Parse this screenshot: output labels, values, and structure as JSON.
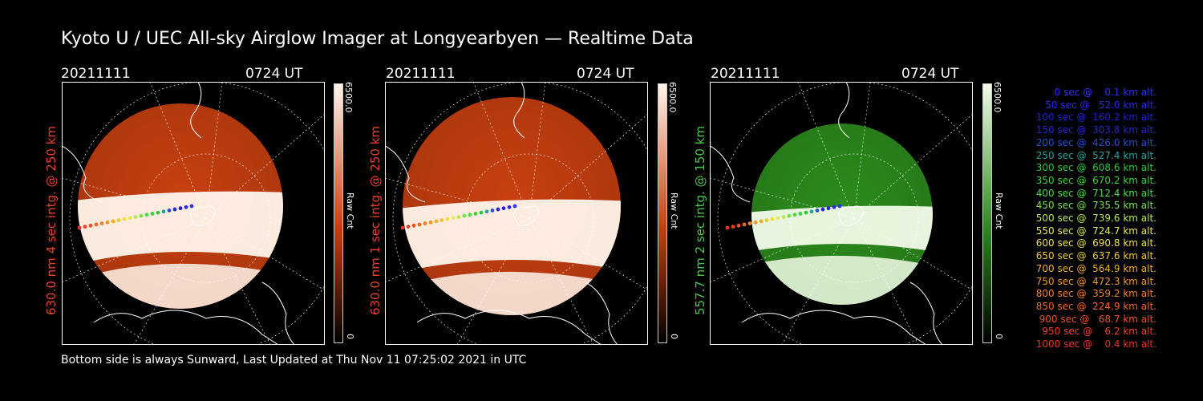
{
  "title": "Kyoto U / UEC All-sky Airglow Imager at Longyearbyen — Realtime Data",
  "footer": "Bottom side is always Sunward, Last Updated at Thu Nov 11 07:25:02 2021 in UTC",
  "panels": [
    {
      "date": "20211111",
      "time": "0724 UT",
      "label": "630.0 nm 4 sec intg. @ 250 km",
      "label_color": "#e8402a",
      "cb_max": "6500.0",
      "cb_min": "0",
      "cb_unit": "Raw Cnt",
      "color_dark": "#000000",
      "color_mid": "#c84010",
      "color_light": "#fff4ea"
    },
    {
      "date": "20211111",
      "time": "0724 UT",
      "label": "630.0 nm 1 sec intg. @ 250 km",
      "label_color": "#e8402a",
      "cb_max": "6500.0",
      "cb_min": "0",
      "cb_unit": "Raw Cnt",
      "color_dark": "#000000",
      "color_mid": "#c84010",
      "color_light": "#fff4ea"
    },
    {
      "date": "20211111",
      "time": "0724 UT",
      "label": "557.7 nm 2 sec intg. @ 150 km",
      "label_color": "#4ac84a",
      "cb_max": "6500.0",
      "cb_min": "0",
      "cb_unit": "Raw Cnt",
      "color_dark": "#000000",
      "color_mid": "#2c8c1c",
      "color_light": "#f2fbe8"
    }
  ],
  "legend": [
    {
      "text": "   0 sec @    0.1 km alt.",
      "color": "#3030ff"
    },
    {
      "text": "  50 sec @   52.0 km alt.",
      "color": "#2828e8"
    },
    {
      "text": " 100 sec @  160.2 km alt.",
      "color": "#2020d8"
    },
    {
      "text": " 150 sec @  303.8 km alt.",
      "color": "#2828c8"
    },
    {
      "text": " 200 sec @  426.0 km alt.",
      "color": "#2850c8"
    },
    {
      "text": " 250 sec @  527.4 km alt.",
      "color": "#28a0a0"
    },
    {
      "text": " 300 sec @  608.6 km alt.",
      "color": "#30c840"
    },
    {
      "text": " 350 sec @  670.2 km alt.",
      "color": "#40d040"
    },
    {
      "text": " 400 sec @  712.4 km alt.",
      "color": "#50d848"
    },
    {
      "text": " 450 sec @  735.5 km alt.",
      "color": "#78e050"
    },
    {
      "text": " 500 sec @  739.6 km alt.",
      "color": "#b8e858"
    },
    {
      "text": " 550 sec @  724.7 km alt.",
      "color": "#e8e860"
    },
    {
      "text": " 600 sec @  690.8 km alt.",
      "color": "#f0e040"
    },
    {
      "text": " 650 sec @  637.6 km alt.",
      "color": "#f0c830"
    },
    {
      "text": " 700 sec @  564.9 km alt.",
      "color": "#f0b028"
    },
    {
      "text": " 750 sec @  472.3 km alt.",
      "color": "#f09828"
    },
    {
      "text": " 800 sec @  359.2 km alt.",
      "color": "#f08028"
    },
    {
      "text": " 850 sec @  224.9 km alt.",
      "color": "#f06828"
    },
    {
      "text": " 900 sec @   68.7 km alt.",
      "color": "#f05028"
    },
    {
      "text": " 950 sec @    6.2 km alt.",
      "color": "#f04028"
    },
    {
      "text": "1000 sec @    0.4 km alt.",
      "color": "#f03028"
    }
  ]
}
